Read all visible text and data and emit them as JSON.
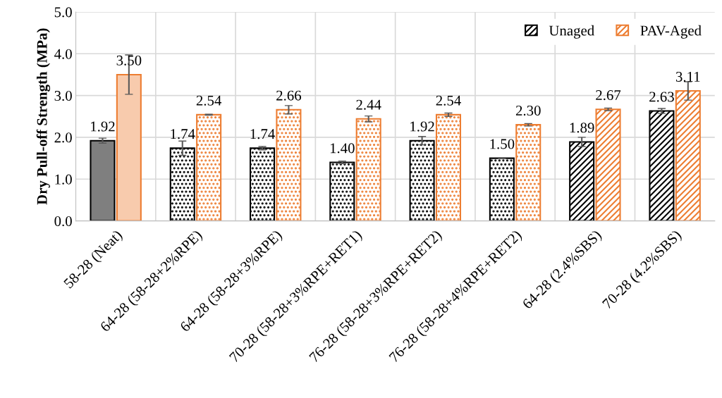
{
  "chart_data": {
    "type": "bar",
    "ylabel": "Dry Pull-off Strength (MPa)",
    "categories": [
      "58-28 (Neat)",
      "64-28 (58-28+2%RPE)",
      "64-28 (58-28+3%RPE)",
      "70-28 (58-28+3%RPE+RET1)",
      "76-28 (58-28+3%RPE+RET2)",
      "76-28 (58-28+4%RPE+RET2)",
      "64-28 (2.4%SBS)",
      "70-28 (4.2%SBS)"
    ],
    "series": [
      {
        "name": "Unaged",
        "color": "#000000",
        "colors": [
          "#7f7f7f",
          "#000000",
          "#000000",
          "#000000",
          "#000000",
          "#000000",
          "#000000",
          "#000000"
        ],
        "values": [
          1.92,
          1.74,
          1.74,
          1.4,
          1.92,
          1.5,
          1.89,
          2.63
        ],
        "value_labels": [
          "1.92",
          "1.74",
          "1.74",
          "1.40",
          "1.92",
          "1.50",
          "1.89",
          "2.63"
        ],
        "errors": [
          0.06,
          0.17,
          0.04,
          0.03,
          0.1,
          0.01,
          0.11,
          0.06
        ]
      },
      {
        "name": "PAV-Aged",
        "color": "#ed7d31",
        "colors": [
          "#f8cbad",
          "#ed7d31",
          "#ed7d31",
          "#ed7d31",
          "#ed7d31",
          "#ed7d31",
          "#ed7d31",
          "#ed7d31"
        ],
        "values": [
          3.5,
          2.54,
          2.66,
          2.44,
          2.54,
          2.3,
          2.67,
          3.11
        ],
        "value_labels": [
          "3.50",
          "2.54",
          "2.66",
          "2.44",
          "2.54",
          "2.30",
          "2.67",
          "3.11"
        ],
        "errors": [
          0.47,
          0.01,
          0.1,
          0.07,
          0.04,
          0.03,
          0.03,
          0.22
        ]
      }
    ],
    "ylim": [
      0,
      5
    ],
    "yticks": [
      {
        "value": 0,
        "label": "0.0"
      },
      {
        "value": 1,
        "label": "1.0"
      },
      {
        "value": 2,
        "label": "2.0"
      },
      {
        "value": 3,
        "label": "3.0"
      },
      {
        "value": 4,
        "label": "4.0"
      },
      {
        "value": 5,
        "label": "5.0"
      }
    ],
    "grid": true,
    "legend": "top right"
  }
}
